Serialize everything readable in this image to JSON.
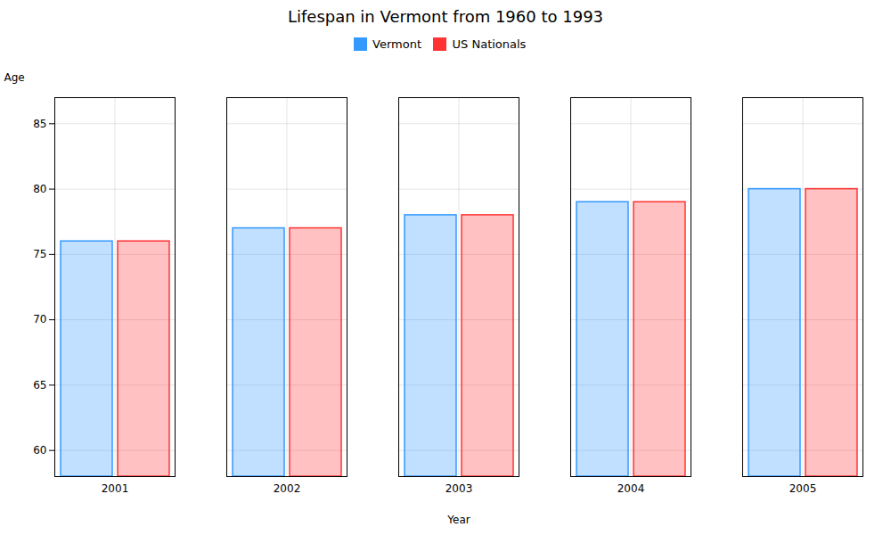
{
  "chart_data": {
    "type": "bar",
    "title": "Lifespan in Vermont from 1960 to 1993",
    "xlabel": "Year",
    "ylabel": "Age",
    "categories": [
      "2001",
      "2002",
      "2003",
      "2004",
      "2005"
    ],
    "series": [
      {
        "name": "Vermont",
        "color": "#3399ff",
        "values": [
          76,
          77,
          78,
          79,
          80
        ]
      },
      {
        "name": "US Nationals",
        "color": "#ff3333",
        "values": [
          76,
          77,
          78,
          79,
          80
        ]
      }
    ],
    "ylim": [
      58,
      87
    ],
    "yticks": [
      60,
      65,
      70,
      75,
      80,
      85
    ],
    "grid": true,
    "legend": "top"
  }
}
